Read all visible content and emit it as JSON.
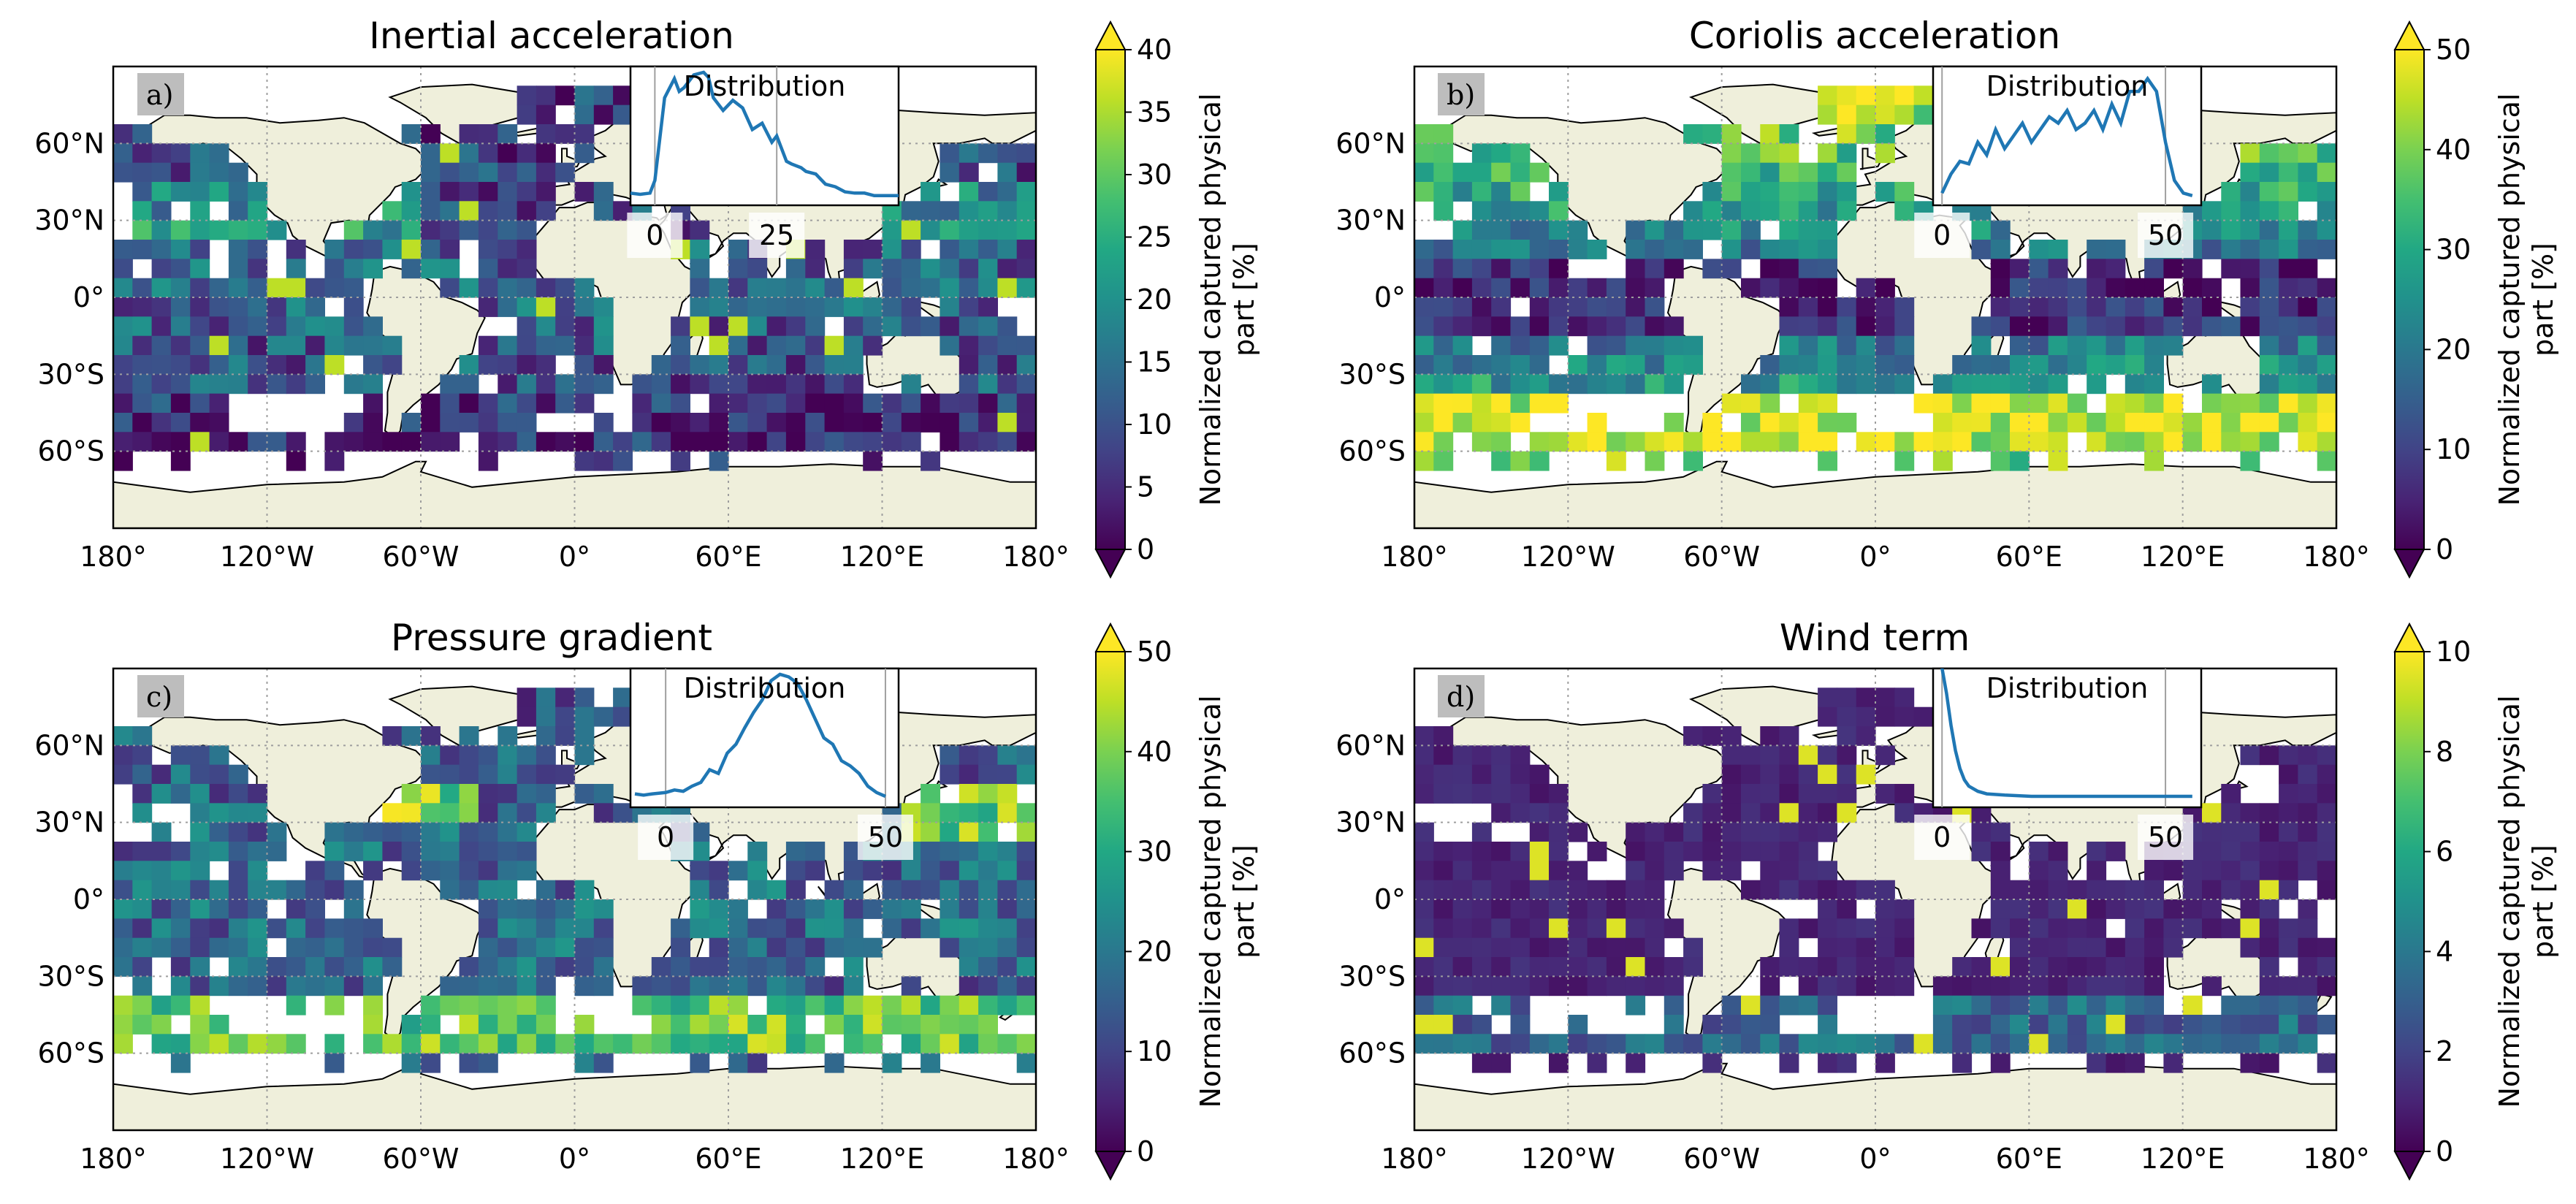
{
  "figure": {
    "panels": [
      {
        "id": "a",
        "tag": "a)",
        "title": "Inertial acceleration",
        "cmin": 0,
        "cmax": 40,
        "colorbar": {
          "ticks": [
            "0",
            "5",
            "10",
            "15",
            "20",
            "25",
            "30",
            "35",
            "40"
          ],
          "label_line1": "Normalized captured physical",
          "label_line2": "part [%]"
        },
        "inset": {
          "title": "Distribution",
          "xticks": [
            "0",
            "25"
          ],
          "xtick_values": [
            0,
            25
          ],
          "xrange": [
            -5,
            50
          ],
          "curve": [
            [
              -5,
              0.05
            ],
            [
              -3,
              0.04
            ],
            [
              -1,
              0.05
            ],
            [
              0,
              0.15
            ],
            [
              2,
              0.8
            ],
            [
              4,
              0.95
            ],
            [
              5,
              0.85
            ],
            [
              6,
              0.88
            ],
            [
              8,
              0.98
            ],
            [
              10,
              1.0
            ],
            [
              11,
              0.96
            ],
            [
              12,
              0.8
            ],
            [
              14,
              0.7
            ],
            [
              16,
              0.78
            ],
            [
              18,
              0.72
            ],
            [
              20,
              0.55
            ],
            [
              22,
              0.6
            ],
            [
              24,
              0.45
            ],
            [
              25,
              0.5
            ],
            [
              27,
              0.3
            ],
            [
              28,
              0.28
            ],
            [
              30,
              0.25
            ],
            [
              31,
              0.22
            ],
            [
              33,
              0.2
            ],
            [
              35,
              0.12
            ],
            [
              37,
              0.1
            ],
            [
              39,
              0.06
            ],
            [
              41,
              0.05
            ],
            [
              43,
              0.05
            ],
            [
              45,
              0.03
            ],
            [
              47,
              0.03
            ],
            [
              50,
              0.03
            ]
          ]
        },
        "pattern": "inertial"
      },
      {
        "id": "b",
        "tag": "b)",
        "title": "Coriolis acceleration",
        "cmin": 0,
        "cmax": 50,
        "colorbar": {
          "ticks": [
            "0",
            "10",
            "20",
            "30",
            "40",
            "50"
          ],
          "label_line1": "Normalized captured physical",
          "label_line2": "part [%]"
        },
        "inset": {
          "title": "Distribution",
          "xticks": [
            "0",
            "50"
          ],
          "xtick_values": [
            0,
            50
          ],
          "xrange": [
            -2,
            58
          ],
          "curve": [
            [
              0,
              0.05
            ],
            [
              2,
              0.2
            ],
            [
              4,
              0.3
            ],
            [
              6,
              0.28
            ],
            [
              8,
              0.45
            ],
            [
              10,
              0.35
            ],
            [
              12,
              0.55
            ],
            [
              14,
              0.4
            ],
            [
              16,
              0.5
            ],
            [
              18,
              0.6
            ],
            [
              20,
              0.45
            ],
            [
              22,
              0.55
            ],
            [
              24,
              0.65
            ],
            [
              26,
              0.6
            ],
            [
              28,
              0.7
            ],
            [
              30,
              0.55
            ],
            [
              32,
              0.6
            ],
            [
              34,
              0.7
            ],
            [
              36,
              0.55
            ],
            [
              38,
              0.75
            ],
            [
              40,
              0.6
            ],
            [
              42,
              0.85
            ],
            [
              44,
              0.85
            ],
            [
              46,
              0.95
            ],
            [
              48,
              0.85
            ],
            [
              50,
              0.45
            ],
            [
              52,
              0.15
            ],
            [
              54,
              0.05
            ],
            [
              56,
              0.03
            ]
          ]
        },
        "pattern": "coriolis"
      },
      {
        "id": "c",
        "tag": "c)",
        "title": "Pressure gradient",
        "cmin": 0,
        "cmax": 50,
        "colorbar": {
          "ticks": [
            "0",
            "10",
            "20",
            "30",
            "40",
            "50"
          ],
          "label_line1": "Normalized captured physical",
          "label_line2": "part [%]"
        },
        "inset": {
          "title": "Distribution",
          "xticks": [
            "0",
            "50"
          ],
          "xtick_values": [
            0,
            50
          ],
          "xrange": [
            -8,
            53
          ],
          "curve": [
            [
              -7,
              0.06
            ],
            [
              -5,
              0.05
            ],
            [
              -3,
              0.06
            ],
            [
              0,
              0.07
            ],
            [
              2,
              0.09
            ],
            [
              4,
              0.08
            ],
            [
              6,
              0.12
            ],
            [
              8,
              0.15
            ],
            [
              10,
              0.25
            ],
            [
              12,
              0.22
            ],
            [
              14,
              0.38
            ],
            [
              16,
              0.45
            ],
            [
              18,
              0.58
            ],
            [
              20,
              0.7
            ],
            [
              22,
              0.8
            ],
            [
              24,
              0.95
            ],
            [
              26,
              1.0
            ],
            [
              28,
              0.98
            ],
            [
              30,
              0.93
            ],
            [
              32,
              0.8
            ],
            [
              34,
              0.65
            ],
            [
              36,
              0.5
            ],
            [
              38,
              0.45
            ],
            [
              40,
              0.32
            ],
            [
              42,
              0.28
            ],
            [
              44,
              0.22
            ],
            [
              46,
              0.12
            ],
            [
              48,
              0.07
            ],
            [
              50,
              0.04
            ]
          ]
        },
        "pattern": "pressure"
      },
      {
        "id": "d",
        "tag": "d)",
        "title": "Wind term",
        "cmin": 0,
        "cmax": 10,
        "colorbar": {
          "ticks": [
            "0",
            "2",
            "4",
            "6",
            "8",
            "10"
          ],
          "label_line1": "Normalized captured physical",
          "label_line2": "part [%]"
        },
        "inset": {
          "title": "Distribution",
          "xticks": [
            "0",
            "50"
          ],
          "xtick_values": [
            0,
            50
          ],
          "xrange": [
            -2,
            58
          ],
          "curve": [
            [
              0,
              1.05
            ],
            [
              1,
              0.85
            ],
            [
              2,
              0.6
            ],
            [
              3,
              0.4
            ],
            [
              4,
              0.26
            ],
            [
              5,
              0.17
            ],
            [
              6,
              0.12
            ],
            [
              8,
              0.08
            ],
            [
              10,
              0.06
            ],
            [
              14,
              0.05
            ],
            [
              20,
              0.04
            ],
            [
              30,
              0.04
            ],
            [
              40,
              0.04
            ],
            [
              50,
              0.04
            ],
            [
              56,
              0.04
            ]
          ]
        },
        "pattern": "wind"
      }
    ],
    "map_axes": {
      "xticks": [
        "180°",
        "120°W",
        "60°W",
        "0°",
        "60°E",
        "120°E",
        "180°"
      ],
      "xtick_values": [
        -180,
        -120,
        -60,
        0,
        60,
        120,
        180
      ],
      "yticks": [
        "60°N",
        "30°N",
        "0°",
        "30°S",
        "60°S"
      ],
      "ytick_values": [
        60,
        30,
        0,
        -30,
        -60
      ],
      "lat_range": [
        -90,
        90
      ]
    },
    "colors": {
      "land": "#efefdb",
      "viridis": [
        "#440154",
        "#482475",
        "#414487",
        "#355f8d",
        "#2a788e",
        "#21918c",
        "#22a884",
        "#44bf70",
        "#7ad151",
        "#bddf26",
        "#fde725"
      ],
      "inset_line": "#1f77b4",
      "tag_bg": "#bdbdbd",
      "grid": "#9e9e9e"
    }
  }
}
